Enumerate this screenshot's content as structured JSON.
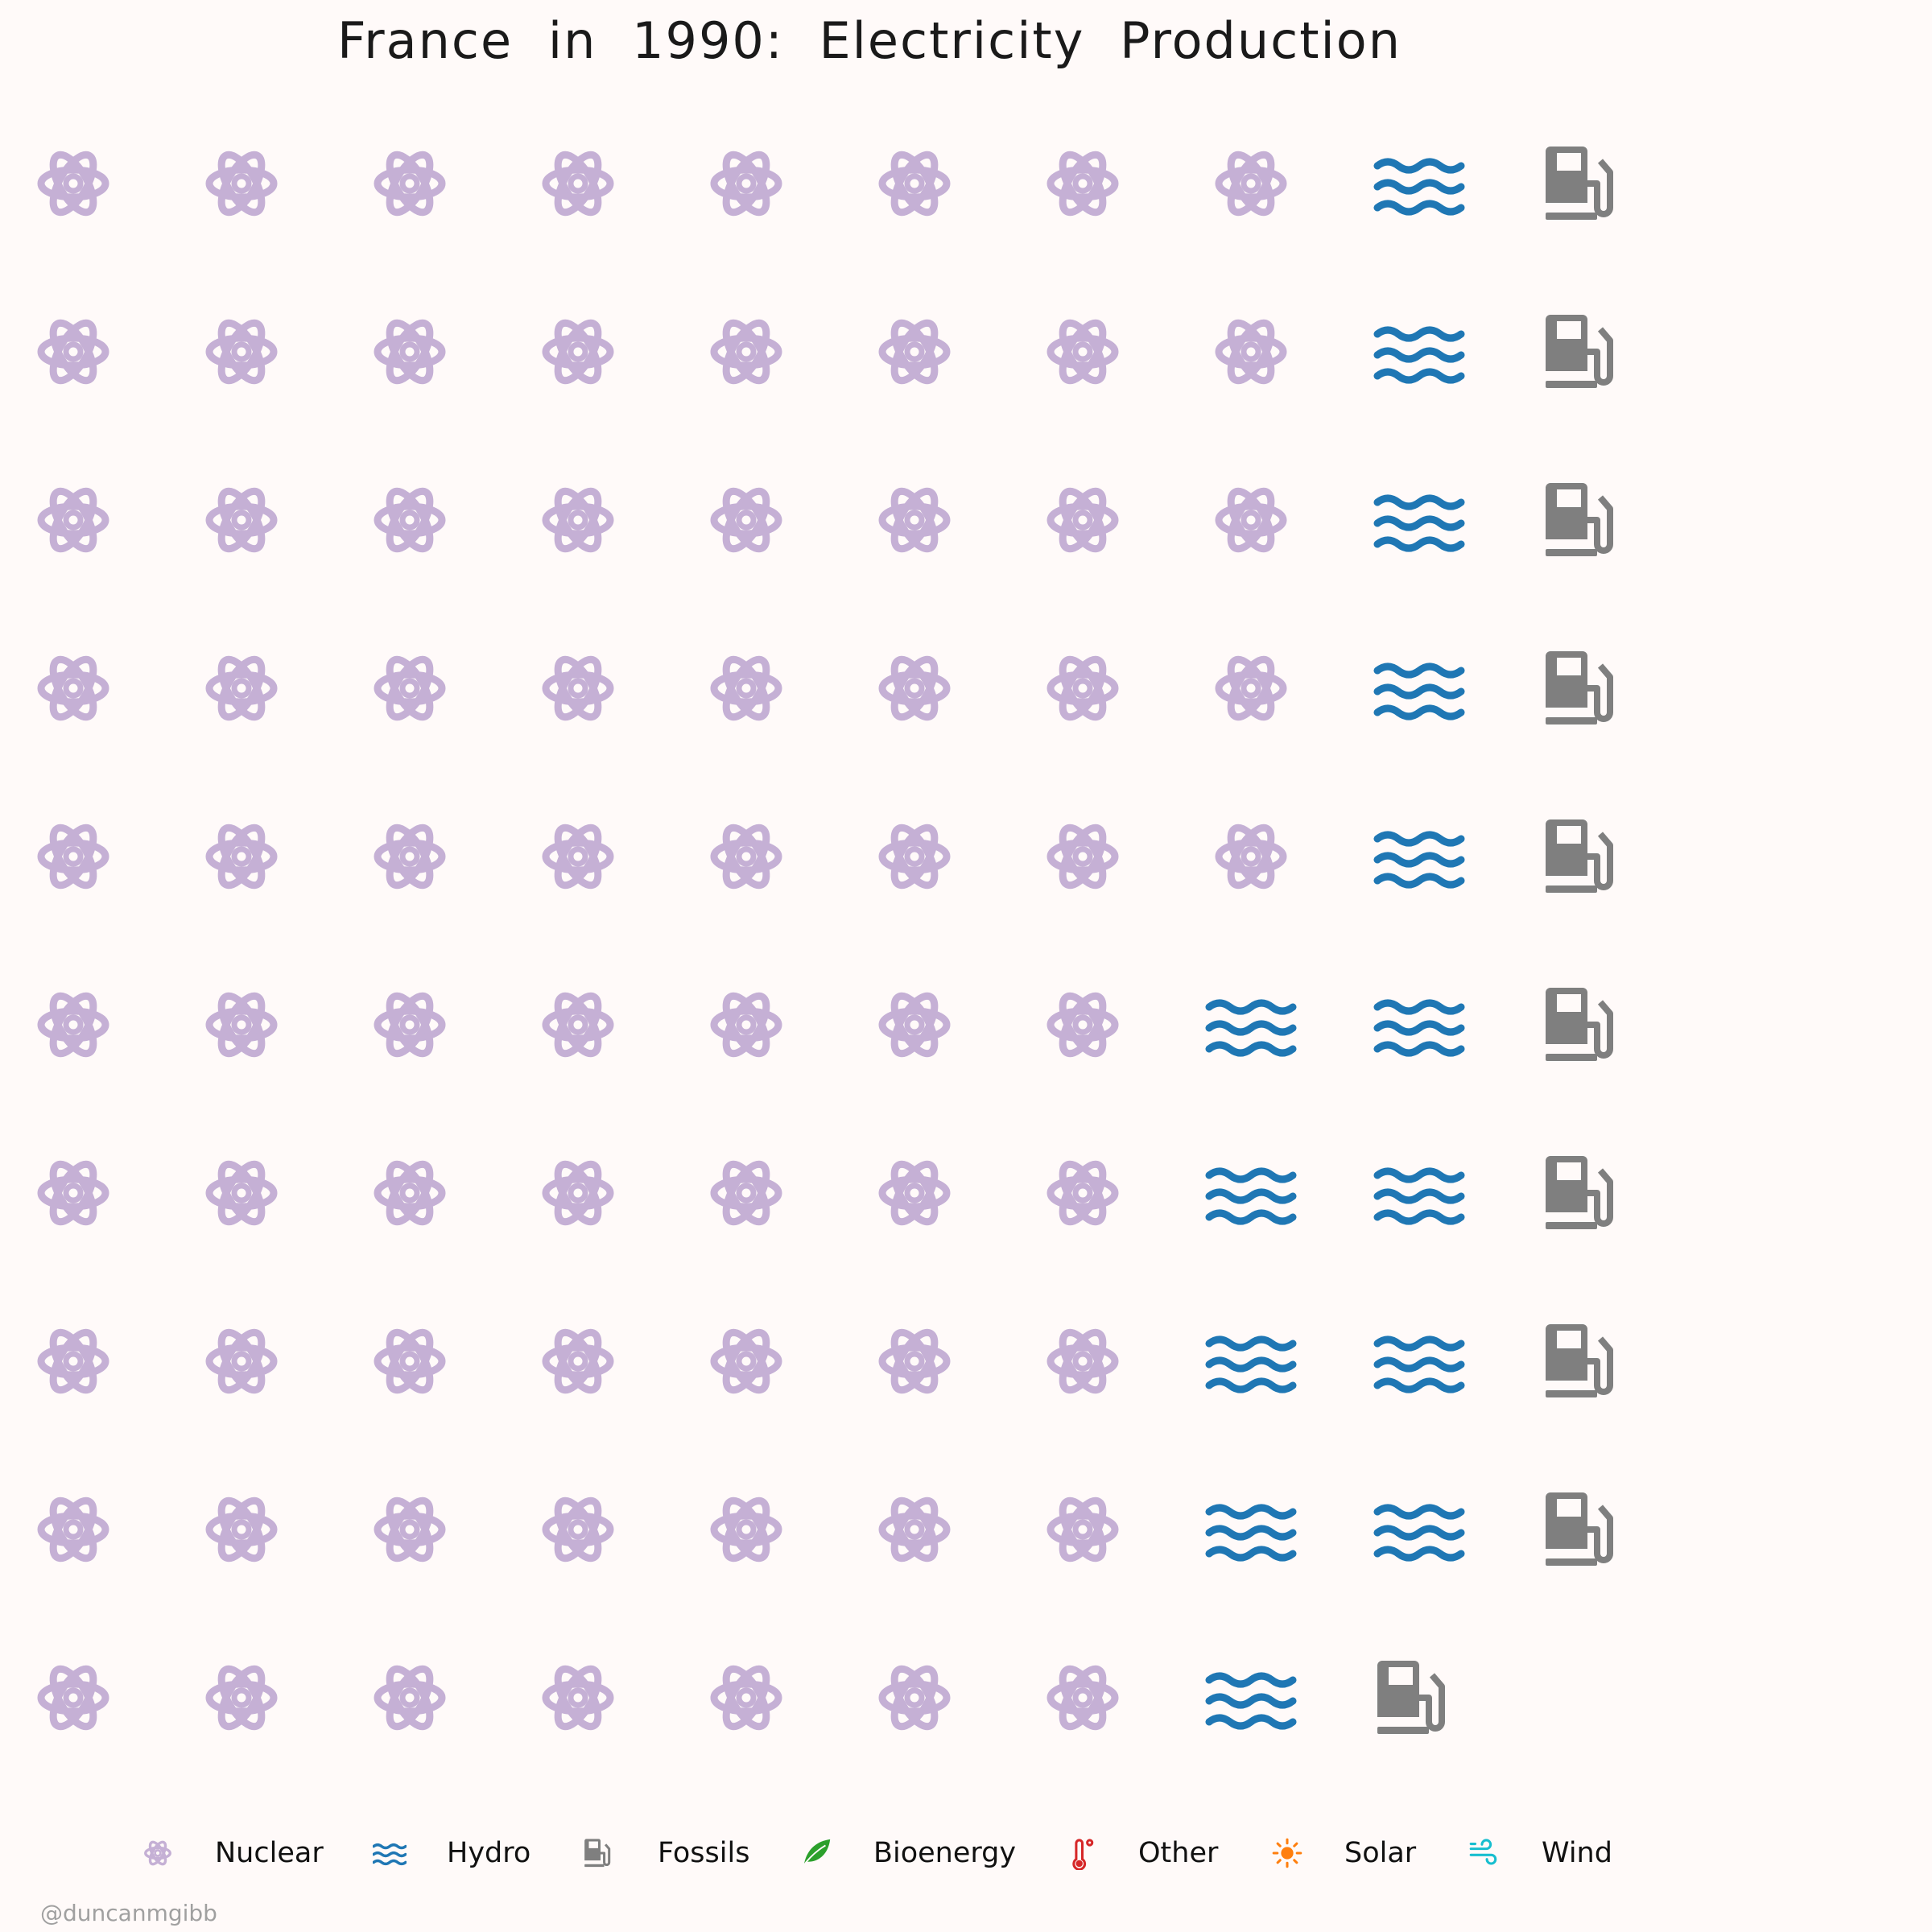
{
  "chart_data": {
    "type": "waffle",
    "title": "France in 1990: Electricity Production",
    "units_per_icon": "1%",
    "grid": {
      "rows": 10,
      "columns": 10,
      "fill_order": "column-wise from top-left"
    },
    "categories": [
      "Nuclear",
      "Hydro",
      "Fossils",
      "Bioenergy",
      "Other",
      "Solar",
      "Wind"
    ],
    "series": [
      {
        "name": "Nuclear",
        "icon": "atom-icon",
        "color": "#c5b0d5",
        "count": 75
      },
      {
        "name": "Hydro",
        "icon": "water-waves-icon",
        "color": "#1f77b4",
        "count": 14
      },
      {
        "name": "Fossils",
        "icon": "gas-pump-icon",
        "color": "#7f7f7f",
        "count": 10
      },
      {
        "name": "Bioenergy",
        "icon": "leaf-icon",
        "color": "#2ca02c",
        "count": 0
      },
      {
        "name": "Other",
        "icon": "thermometer-icon",
        "color": "#d62728",
        "count": 0
      },
      {
        "name": "Solar",
        "icon": "sun-icon",
        "color": "#ff7f0e",
        "count": 0
      },
      {
        "name": "Wind",
        "icon": "wind-icon",
        "color": "#17becf",
        "count": 0
      }
    ],
    "legend": {
      "placement": "bottom",
      "columns": 7
    }
  },
  "credit": "@duncanmgibb"
}
